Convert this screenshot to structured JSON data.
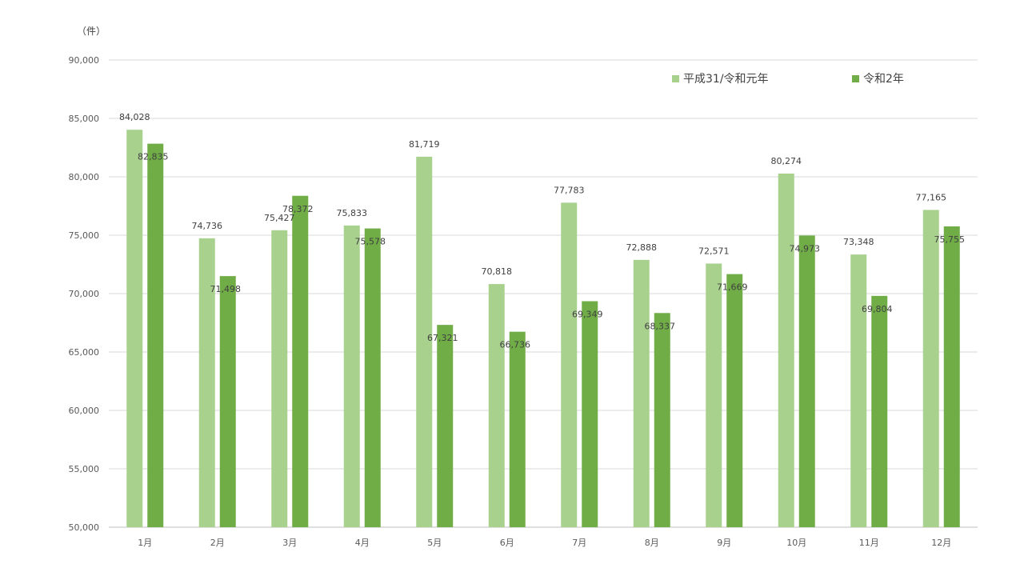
{
  "chart_data": {
    "type": "bar",
    "unit_label": "（件）",
    "categories": [
      "1月",
      "2月",
      "3月",
      "4月",
      "5月",
      "6月",
      "7月",
      "8月",
      "9月",
      "10月",
      "11月",
      "12月"
    ],
    "series": [
      {
        "name": "平成31/令和元年",
        "color": "#a9d18e",
        "values": [
          84028,
          74736,
          75427,
          75833,
          81719,
          70818,
          77783,
          72888,
          72571,
          80274,
          73348,
          77165
        ],
        "labels": [
          "84,028",
          "74,736",
          "75,427",
          "75,833",
          "81,719",
          "70,818",
          "77,783",
          "72,888",
          "72,571",
          "80,274",
          "73,348",
          "77,165"
        ]
      },
      {
        "name": "令和2年",
        "color": "#70ad47",
        "values": [
          82835,
          71498,
          78372,
          75578,
          67321,
          66736,
          69349,
          68337,
          71669,
          74973,
          69804,
          75755
        ],
        "labels": [
          "82,835",
          "71,498",
          "78,372",
          "75,578",
          "67,321",
          "66,736",
          "69,349",
          "68,337",
          "71,669",
          "74,973",
          "69,804",
          "75,755"
        ]
      }
    ],
    "ylim": [
      50000,
      90000
    ],
    "yticks": [
      50000,
      55000,
      60000,
      65000,
      70000,
      75000,
      80000,
      85000,
      90000
    ],
    "ytick_labels": [
      "50,000",
      "55,000",
      "60,000",
      "65,000",
      "70,000",
      "75,000",
      "80,000",
      "85,000",
      "90,000"
    ],
    "grid": true,
    "legend_position": "top-right"
  }
}
